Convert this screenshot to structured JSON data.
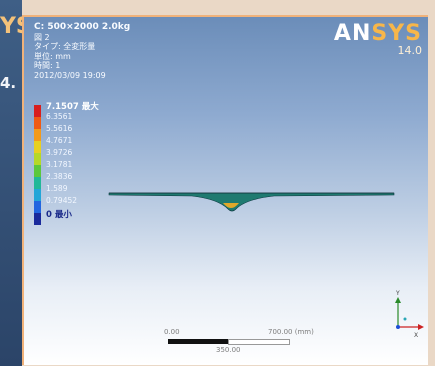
{
  "side_window": {
    "logo_fragment": "YS",
    "version_fragment": "4."
  },
  "result": {
    "title": "C: 500×2000  2.0kg",
    "figure": "図 2",
    "type": "タイプ: 全変形量",
    "unit": "単位: mm",
    "time": "時間: 1",
    "date": "2012/03/09 19:09"
  },
  "logo": {
    "brand_main": "AN",
    "brand_accent": "SYS",
    "version": "14.0"
  },
  "legend": [
    {
      "label": "7.1507 最大",
      "color": "#d81e1e",
      "style": "strong"
    },
    {
      "label": "6.3561",
      "color": "#ef5a14",
      "style": ""
    },
    {
      "label": "5.5616",
      "color": "#f39a1a",
      "style": ""
    },
    {
      "label": "4.7671",
      "color": "#e8d020",
      "style": ""
    },
    {
      "label": "3.9726",
      "color": "#b6d828",
      "style": ""
    },
    {
      "label": "3.1781",
      "color": "#5cc83c",
      "style": ""
    },
    {
      "label": "2.3836",
      "color": "#22b898",
      "style": ""
    },
    {
      "label": "1.589",
      "color": "#22a6d8",
      "style": ""
    },
    {
      "label": "0.79452",
      "color": "#2266e0",
      "style": ""
    },
    {
      "label": "0 最小",
      "color": "#1a2a9c",
      "style": "min"
    }
  ],
  "scale": {
    "left_label": "0.00",
    "mid_label": "350.00",
    "right_label": "700.00 (mm)"
  },
  "triad": {
    "y_label": "Y",
    "x_label": "X",
    "y_color": "#2a8a2a",
    "x_color": "#cc2222",
    "z_color": "#1d4fd6"
  }
}
